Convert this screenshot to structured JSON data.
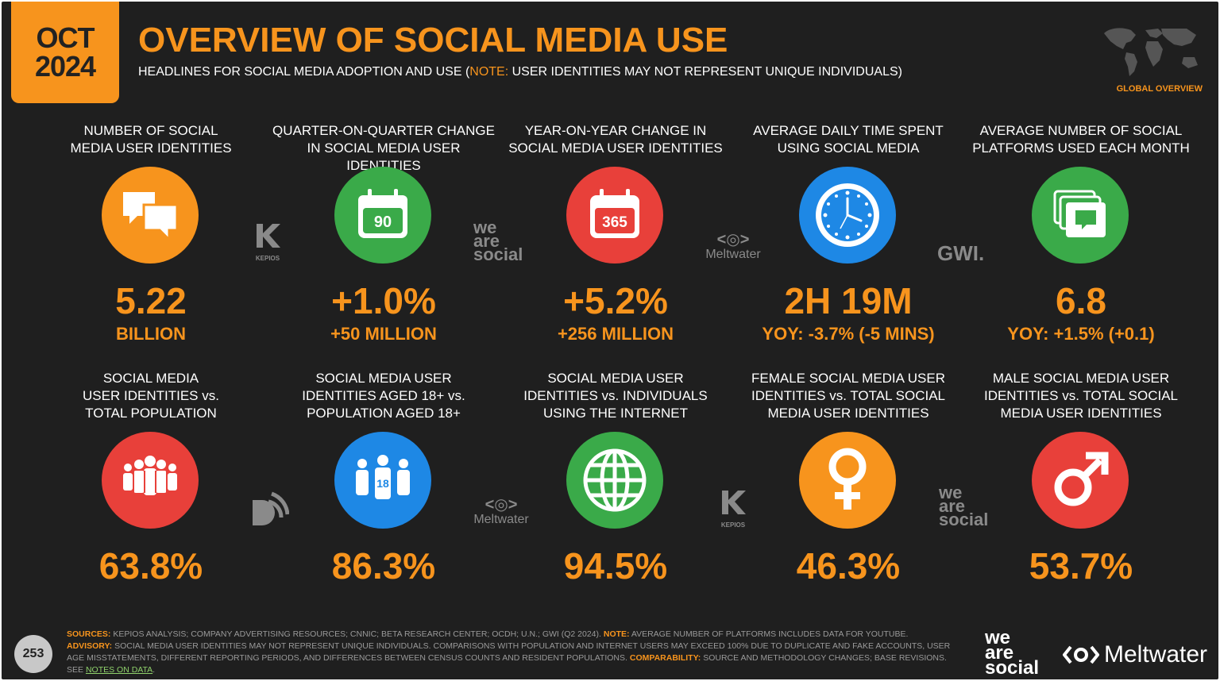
{
  "header": {
    "date_month": "OCT",
    "date_year": "2024",
    "title": "OVERVIEW OF SOCIAL MEDIA USE",
    "subtitle_pre": "HEADLINES FOR SOCIAL MEDIA ADOPTION AND USE (",
    "subtitle_note": "NOTE:",
    "subtitle_post": " USER IDENTITIES MAY NOT REPRESENT UNIQUE INDIVIDUALS)",
    "region": "GLOBAL OVERVIEW"
  },
  "colors": {
    "background": "#1f1f1f",
    "accent": "#f7941d",
    "orange": "#f7941d",
    "green": "#3aaa49",
    "red": "#e8403a",
    "blue": "#1e88e5"
  },
  "row1": [
    {
      "label": "NUMBER OF SOCIAL\nMEDIA USER IDENTITIES",
      "value": "5.22",
      "sub": "BILLION",
      "icon": "chat-bubbles-icon",
      "color": "orange"
    },
    {
      "label": "QUARTER-ON-QUARTER CHANGE\nIN SOCIAL MEDIA USER IDENTITIES",
      "value": "+1.0%",
      "sub": "+50 MILLION",
      "icon": "calendar-90-icon",
      "icon_text": "90",
      "color": "green"
    },
    {
      "label": "YEAR-ON-YEAR CHANGE IN\nSOCIAL MEDIA USER IDENTITIES",
      "value": "+5.2%",
      "sub": "+256 MILLION",
      "icon": "calendar-365-icon",
      "icon_text": "365",
      "color": "red"
    },
    {
      "label": "AVERAGE DAILY TIME SPENT\nUSING SOCIAL MEDIA",
      "value": "2H 19M",
      "sub": "YOY: -3.7% (-5 MINS)",
      "icon": "clock-icon",
      "color": "blue"
    },
    {
      "label": "AVERAGE NUMBER OF SOCIAL\nPLATFORMS USED EACH MONTH",
      "value": "6.8",
      "sub": "YOY: +1.5% (+0.1)",
      "icon": "stacked-windows-icon",
      "color": "green"
    }
  ],
  "row2": [
    {
      "label": "SOCIAL MEDIA\nUSER IDENTITIES vs.\nTOTAL POPULATION",
      "value": "63.8%",
      "icon": "crowd-icon",
      "color": "red"
    },
    {
      "label": "SOCIAL MEDIA USER\nIDENTITIES AGED 18+ vs.\nPOPULATION AGED 18+",
      "value": "86.3%",
      "icon": "adults-18-icon",
      "icon_text": "18",
      "color": "blue"
    },
    {
      "label": "SOCIAL MEDIA USER\nIDENTITIES vs. INDIVIDUALS\nUSING THE INTERNET",
      "value": "94.5%",
      "icon": "globe-icon",
      "color": "green"
    },
    {
      "label": "FEMALE SOCIAL MEDIA USER\nIDENTITIES vs. TOTAL SOCIAL\nMEDIA USER IDENTITIES",
      "value": "46.3%",
      "icon": "female-symbol-icon",
      "color": "orange"
    },
    {
      "label": "MALE SOCIAL MEDIA USER\nIDENTITIES vs. TOTAL SOCIAL\nMEDIA USER IDENTITIES",
      "value": "53.7%",
      "icon": "male-symbol-icon",
      "color": "red"
    }
  ],
  "source_logos": {
    "kepios": "KEPIOS",
    "weare_1": "we",
    "weare_2": "are",
    "weare_3": "social",
    "meltwater": "Meltwater",
    "gwi": "GWI."
  },
  "footer": {
    "sources_label": "SOURCES:",
    "sources_text": " KEPIOS ANALYSIS; COMPANY ADVERTISING RESOURCES; CNNIC; BETA RESEARCH CENTER; OCDH; U.N.; GWI (Q2 2024). ",
    "note_label": "NOTE:",
    "note_text": " AVERAGE NUMBER OF PLATFORMS INCLUDES DATA FOR YOUTUBE.",
    "advisory_label": "ADVISORY:",
    "advisory_text": " SOCIAL MEDIA USER IDENTITIES MAY NOT REPRESENT UNIQUE INDIVIDUALS. COMPARISONS WITH POPULATION AND INTERNET USERS MAY EXCEED 100% DUE TO DUPLICATE AND FAKE ACCOUNTS, USER AGE MISSTATEMENTS, DIFFERENT REPORTING PERIODS, AND DIFFERENCES BETWEEN CENSUS COUNTS AND RESIDENT POPULATIONS. ",
    "comparability_label": "COMPARABILITY:",
    "comparability_text": " SOURCE AND METHODOLOGY CHANGES; BASE REVISIONS. SEE ",
    "link_text": "NOTES ON DATA",
    "end_text": ".",
    "page_number": "253"
  },
  "brand": {
    "was_1": "we",
    "was_2": "are",
    "was_3": "social",
    "meltwater": "Meltwater"
  }
}
